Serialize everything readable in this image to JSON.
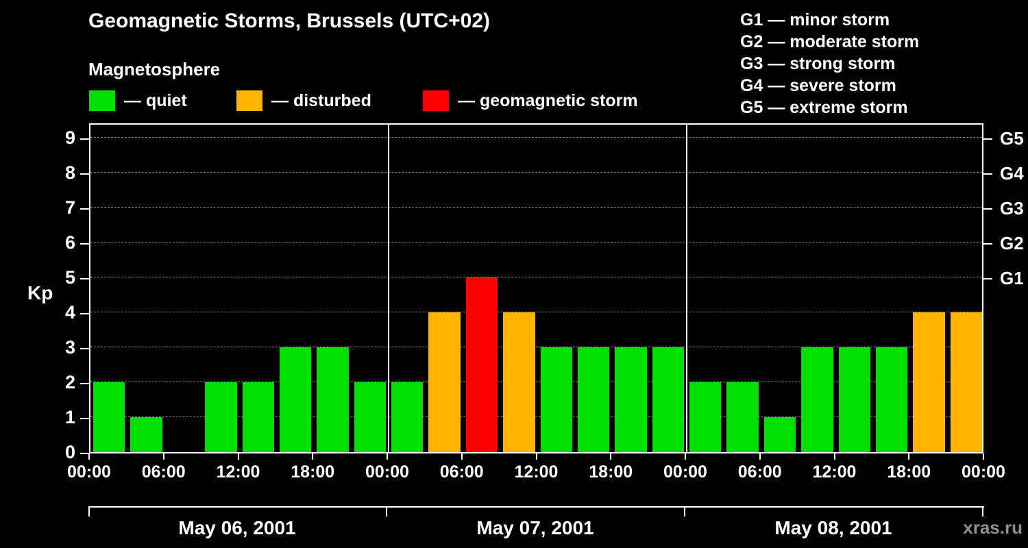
{
  "title": "Geomagnetic Storms, Brussels (UTC+02)",
  "subtitle": "Magnetosphere",
  "legend": {
    "items": [
      {
        "name": "quiet",
        "label": "— quiet",
        "color": "#00e000"
      },
      {
        "name": "disturbed",
        "label": "— disturbed",
        "color": "#ffb400"
      },
      {
        "name": "storm",
        "label": "— geomagnetic storm",
        "color": "#ff0000"
      }
    ]
  },
  "storm_scale": [
    "G1 — minor storm",
    "G2 — moderate storm",
    "G3 — strong storm",
    "G4 — severe storm",
    "G5 — extreme storm"
  ],
  "watermark": "xras.ru",
  "chart_data": {
    "type": "bar",
    "title": "Geomagnetic Storms, Brussels (UTC+02)",
    "ylabel": "Kp",
    "ylim": [
      0,
      9.45
    ],
    "y_ticks": [
      0,
      1,
      2,
      3,
      4,
      5,
      6,
      7,
      8,
      9
    ],
    "right_axis": [
      {
        "kp": 5,
        "label": "G1"
      },
      {
        "kp": 6,
        "label": "G2"
      },
      {
        "kp": 7,
        "label": "G3"
      },
      {
        "kp": 8,
        "label": "G4"
      },
      {
        "kp": 9,
        "label": "G5"
      }
    ],
    "x_tick_labels": [
      "00:00",
      "06:00",
      "12:00",
      "18:00",
      "00:00",
      "06:00",
      "12:00",
      "18:00",
      "00:00",
      "06:00",
      "12:00",
      "18:00",
      "00:00"
    ],
    "interval_hours": 3,
    "days": [
      {
        "date": "May 06, 2001",
        "values": [
          2,
          1,
          0,
          2,
          2,
          3,
          3,
          2
        ]
      },
      {
        "date": "May 07, 2001",
        "values": [
          2,
          4,
          5,
          4,
          3,
          3,
          3,
          3
        ]
      },
      {
        "date": "May 08, 2001",
        "values": [
          2,
          2,
          1,
          3,
          3,
          3,
          4,
          4
        ]
      }
    ],
    "partial_next_value": 4,
    "color_rules": {
      "quiet": "#00e000",
      "disturbed": "#ffb400",
      "storm": "#ff0000",
      "disturbed_at": 4,
      "storm_at": 5
    },
    "grid": "horizontal-dashed",
    "legend_position": "top-left"
  }
}
